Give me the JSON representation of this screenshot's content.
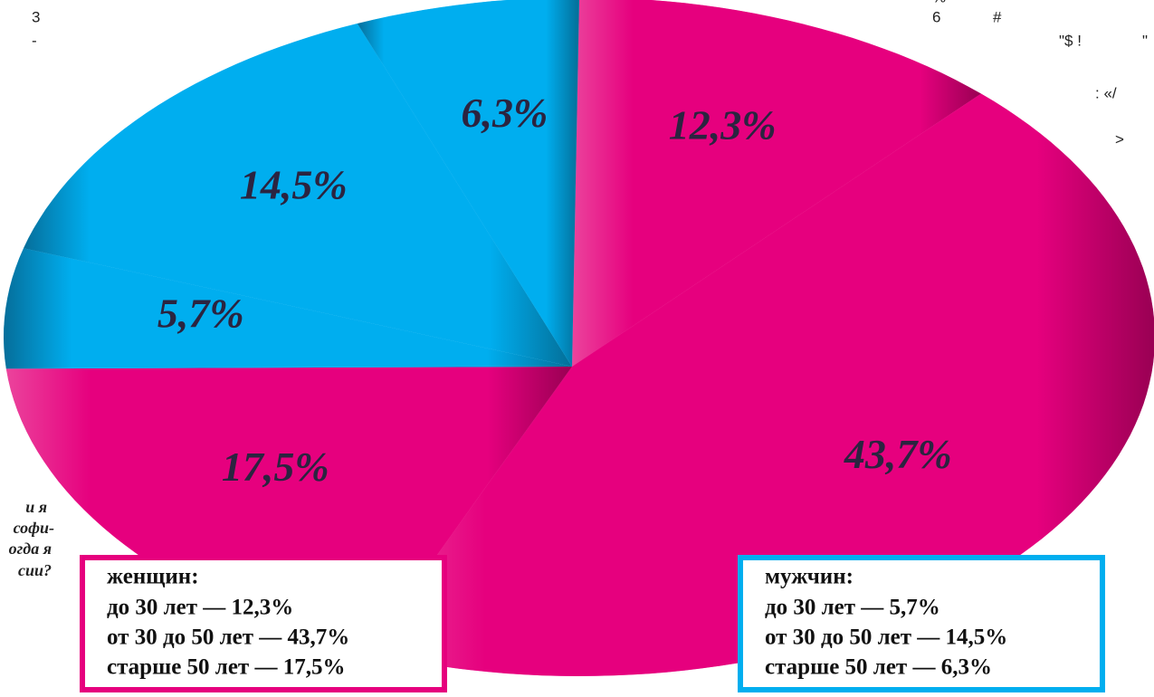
{
  "chart_data": {
    "type": "pie",
    "values": [
      12.3,
      43.7,
      17.5,
      5.7,
      14.5,
      6.3
    ],
    "value_labels": [
      "12,3%",
      "43,7%",
      "17,5%",
      "5,7%",
      "14,5%",
      "6,3%"
    ],
    "colors": [
      "#e6007e",
      "#e6007e",
      "#e6007e",
      "#00aeef",
      "#00aeef",
      "#00aeef"
    ],
    "legend_boxes": [
      {
        "color": "#e6007e",
        "title": "женщин:",
        "lines": [
          "до 30 лет — 12,3%",
          "от 30 до 50 лет — 43,7%",
          "старше 50 лет — 17,5%"
        ]
      },
      {
        "color": "#00aeef",
        "title": "мужчин:",
        "lines": [
          "до 30 лет — 5,7%",
          "от 30 до 50 лет — 14,5%",
          "старше 50 лет — 6,3%"
        ]
      }
    ],
    "annotations": [
      "3",
      "-",
      "%",
      "6",
      "#",
      "\"$ !",
      "\"",
      ": «/",
      ">",
      "и я",
      "софи-",
      "огда я",
      "сии?"
    ]
  }
}
